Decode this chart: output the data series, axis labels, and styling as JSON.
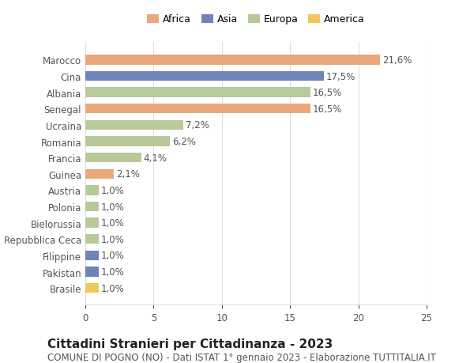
{
  "categories": [
    "Brasile",
    "Pakistan",
    "Filippine",
    "Repubblica Ceca",
    "Bielorussia",
    "Polonia",
    "Austria",
    "Guinea",
    "Francia",
    "Romania",
    "Ucraina",
    "Senegal",
    "Albania",
    "Cina",
    "Marocco"
  ],
  "values": [
    1.0,
    1.0,
    1.0,
    1.0,
    1.0,
    1.0,
    1.0,
    2.1,
    4.1,
    6.2,
    7.2,
    16.5,
    16.5,
    17.5,
    21.6
  ],
  "labels": [
    "1,0%",
    "1,0%",
    "1,0%",
    "1,0%",
    "1,0%",
    "1,0%",
    "1,0%",
    "2,1%",
    "4,1%",
    "6,2%",
    "7,2%",
    "16,5%",
    "16,5%",
    "17,5%",
    "21,6%"
  ],
  "colors": [
    "#f0c85a",
    "#6e84b8",
    "#6e84b8",
    "#b8c99a",
    "#b8c99a",
    "#b8c99a",
    "#b8c99a",
    "#e8a87c",
    "#b8c99a",
    "#b8c99a",
    "#b8c99a",
    "#e8a87c",
    "#b8c99a",
    "#6e84b8",
    "#e8a87c"
  ],
  "legend": [
    {
      "label": "Africa",
      "color": "#e8a87c"
    },
    {
      "label": "Asia",
      "color": "#6e84b8"
    },
    {
      "label": "Europa",
      "color": "#b8c99a"
    },
    {
      "label": "America",
      "color": "#f0c85a"
    }
  ],
  "xlim": [
    0,
    25
  ],
  "xticks": [
    0,
    5,
    10,
    15,
    20,
    25
  ],
  "title": "Cittadini Stranieri per Cittadinanza - 2023",
  "subtitle": "COMUNE DI POGNO (NO) - Dati ISTAT 1° gennaio 2023 - Elaborazione TUTTITALIA.IT",
  "background_color": "#ffffff",
  "grid_color": "#dddddd",
  "bar_height": 0.6,
  "label_fontsize": 8.5,
  "title_fontsize": 11,
  "subtitle_fontsize": 8.5,
  "ytick_fontsize": 8.5,
  "xtick_fontsize": 8.5,
  "legend_fontsize": 9
}
